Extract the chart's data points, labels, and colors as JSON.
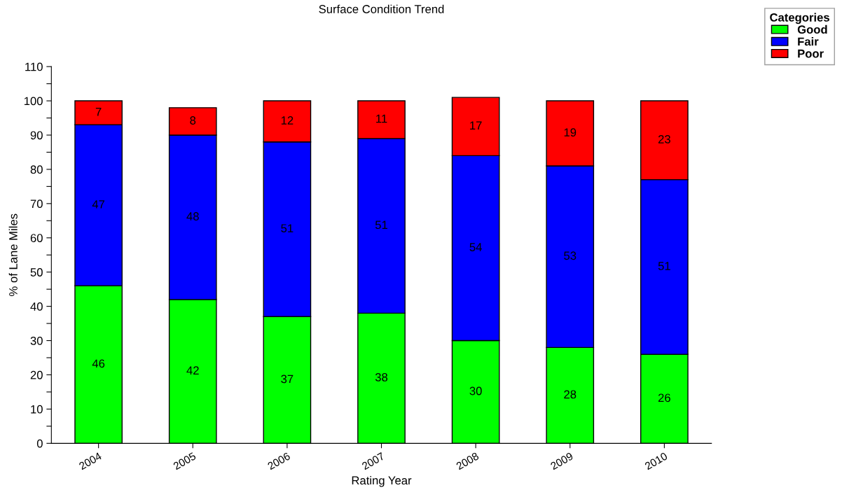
{
  "chart_data": {
    "type": "bar",
    "title": "Surface Condition Trend",
    "xlabel": "Rating Year",
    "ylabel": "% of Lane Miles",
    "categories": [
      "2004",
      "2005",
      "2006",
      "2007",
      "2008",
      "2009",
      "2010"
    ],
    "series": [
      {
        "name": "Good",
        "color": "#00ff00",
        "values": [
          46,
          42,
          37,
          38,
          30,
          28,
          26
        ]
      },
      {
        "name": "Fair",
        "color": "#0000ff",
        "values": [
          47,
          48,
          51,
          51,
          54,
          53,
          51
        ]
      },
      {
        "name": "Poor",
        "color": "#ff0000",
        "values": [
          7,
          8,
          12,
          11,
          17,
          19,
          23
        ]
      }
    ],
    "stacked": true,
    "data_labels": true,
    "legend_title": "Categories",
    "legend": "top right",
    "grid": false,
    "ylim": [
      0,
      110
    ],
    "yticks": [
      0,
      {
        "value": 5,
        "label": null
      },
      10,
      {
        "value": 15,
        "label": null
      },
      20,
      {
        "value": 25,
        "label": null
      },
      30,
      {
        "value": 35,
        "label": null
      },
      40,
      {
        "value": 45,
        "label": null
      },
      50,
      {
        "value": 55,
        "label": null
      },
      60,
      {
        "value": 65,
        "label": null
      },
      70,
      {
        "value": 75,
        "label": null
      },
      80,
      {
        "value": 85,
        "label": null
      },
      90,
      {
        "value": 95,
        "label": null
      },
      100,
      {
        "value": 105,
        "label": null
      },
      110
    ]
  }
}
